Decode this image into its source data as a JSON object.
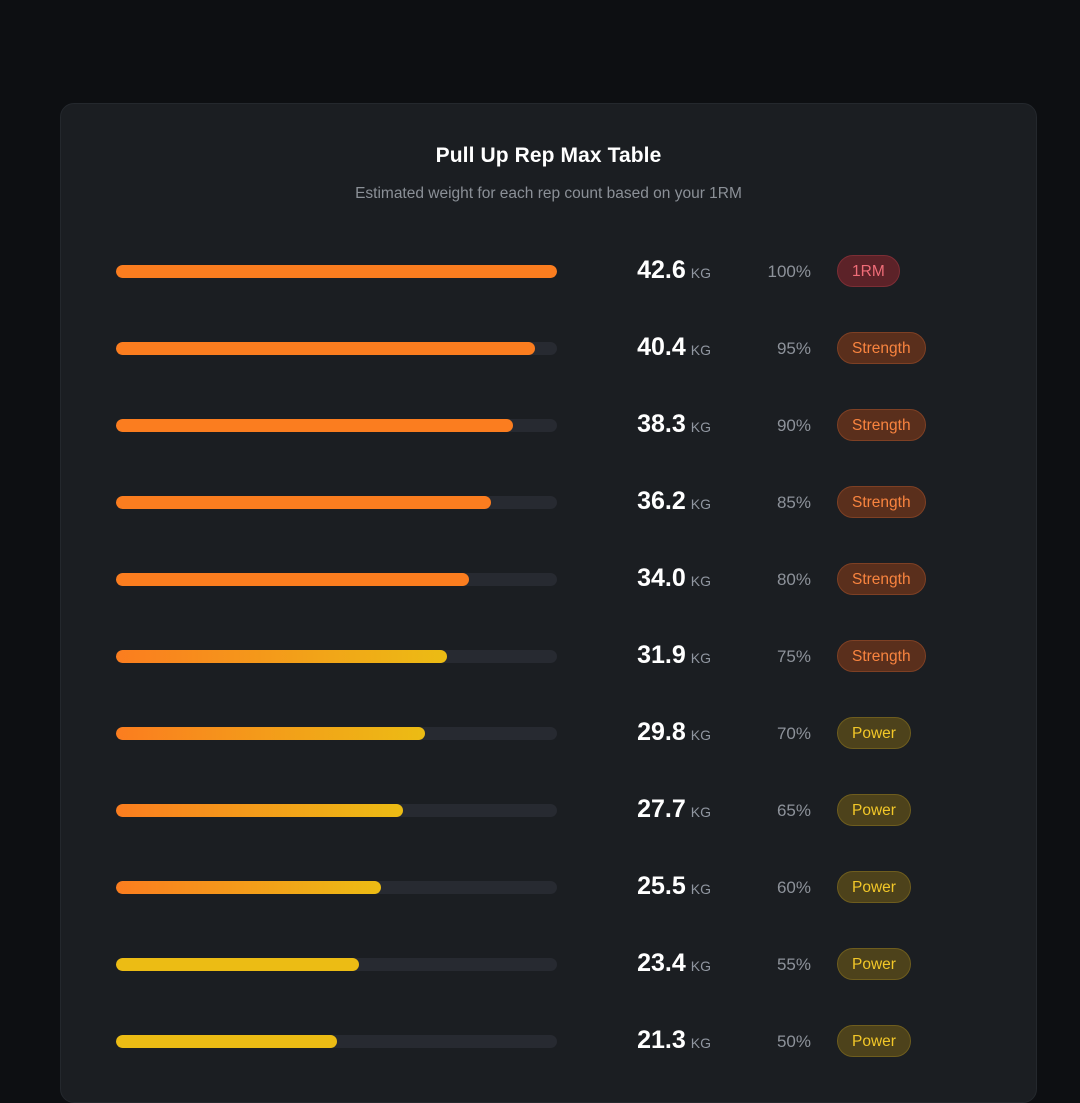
{
  "title": "Pull Up Rep Max Table",
  "subtitle": "Estimated weight for each rep count based on your 1RM",
  "unit": "KG",
  "colors": {
    "orange": "#fb7d1f",
    "yellow": "#ecbc14",
    "track": "#272a31"
  },
  "rows": [
    {
      "weight": "42.6",
      "percent": "100%",
      "pct_value": 100,
      "badge": "1RM",
      "badge_type": "onerm",
      "bar_style": "orange"
    },
    {
      "weight": "40.4",
      "percent": "95%",
      "pct_value": 95,
      "badge": "Strength",
      "badge_type": "strength",
      "bar_style": "orange"
    },
    {
      "weight": "38.3",
      "percent": "90%",
      "pct_value": 90,
      "badge": "Strength",
      "badge_type": "strength",
      "bar_style": "orange"
    },
    {
      "weight": "36.2",
      "percent": "85%",
      "pct_value": 85,
      "badge": "Strength",
      "badge_type": "strength",
      "bar_style": "orange"
    },
    {
      "weight": "34.0",
      "percent": "80%",
      "pct_value": 80,
      "badge": "Strength",
      "badge_type": "strength",
      "bar_style": "orange"
    },
    {
      "weight": "31.9",
      "percent": "75%",
      "pct_value": 75,
      "badge": "Strength",
      "badge_type": "strength",
      "bar_style": "gradient"
    },
    {
      "weight": "29.8",
      "percent": "70%",
      "pct_value": 70,
      "badge": "Power",
      "badge_type": "power",
      "bar_style": "gradient"
    },
    {
      "weight": "27.7",
      "percent": "65%",
      "pct_value": 65,
      "badge": "Power",
      "badge_type": "power",
      "bar_style": "gradient"
    },
    {
      "weight": "25.5",
      "percent": "60%",
      "pct_value": 60,
      "badge": "Power",
      "badge_type": "power",
      "bar_style": "gradient"
    },
    {
      "weight": "23.4",
      "percent": "55%",
      "pct_value": 55,
      "badge": "Power",
      "badge_type": "power",
      "bar_style": "yellow"
    },
    {
      "weight": "21.3",
      "percent": "50%",
      "pct_value": 50,
      "badge": "Power",
      "badge_type": "power",
      "bar_style": "yellow"
    }
  ]
}
